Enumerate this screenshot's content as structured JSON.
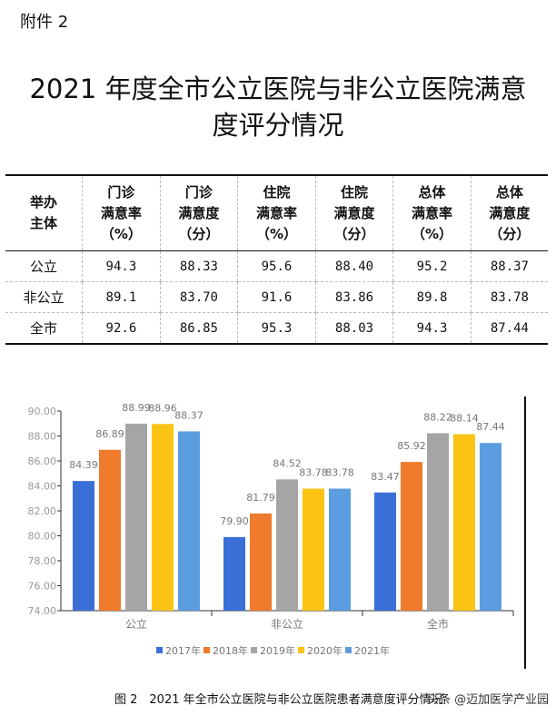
{
  "attachment": "附件 2",
  "title_lines": [
    "2021 年度全市公立医院与非公立医院满意",
    "度评分情况"
  ],
  "table": {
    "headers": [
      [
        "举办",
        "主体"
      ],
      [
        "门诊",
        "满意率",
        "（%）"
      ],
      [
        "门诊",
        "满意度",
        "（分）"
      ],
      [
        "住院",
        "满意率",
        "（%）"
      ],
      [
        "住院",
        "满意度",
        "（分）"
      ],
      [
        "总体",
        "满意率",
        "（%）"
      ],
      [
        "总体",
        "满意度",
        "（分）"
      ]
    ],
    "rows": [
      [
        "公立",
        "94.3",
        "88.33",
        "95.6",
        "88.40",
        "95.2",
        "88.37"
      ],
      [
        "非公立",
        "89.1",
        "83.70",
        "91.6",
        "83.86",
        "89.8",
        "83.78"
      ],
      [
        "全市",
        "92.6",
        "86.85",
        "95.3",
        "88.03",
        "94.3",
        "87.44"
      ]
    ]
  },
  "chart_data": {
    "type": "bar",
    "categories": [
      "公立",
      "非公立",
      "全市"
    ],
    "series": [
      {
        "name": "2017年",
        "values": [
          84.39,
          79.9,
          83.47
        ],
        "color": "#3a6fd8"
      },
      {
        "name": "2018年",
        "values": [
          86.89,
          81.79,
          85.92
        ],
        "color": "#f07b2c"
      },
      {
        "name": "2019年",
        "values": [
          88.99,
          84.52,
          88.22
        ],
        "color": "#a5a5a5"
      },
      {
        "name": "2020年",
        "values": [
          88.96,
          83.78,
          88.14
        ],
        "color": "#fbc313"
      },
      {
        "name": "2021年",
        "values": [
          88.37,
          83.78,
          87.44
        ],
        "color": "#5b9de0"
      }
    ],
    "ylim": [
      74,
      90
    ],
    "yticks": [
      "74.00",
      "76.00",
      "78.00",
      "80.00",
      "82.00",
      "84.00",
      "86.00",
      "88.00",
      "90.00"
    ],
    "legend": "bottom",
    "grid": false
  },
  "caption": "图 2　2021 年全市公立医院与非公立医院患者满意度评分情况",
  "watermark": "头条 @迈加医学产业园"
}
